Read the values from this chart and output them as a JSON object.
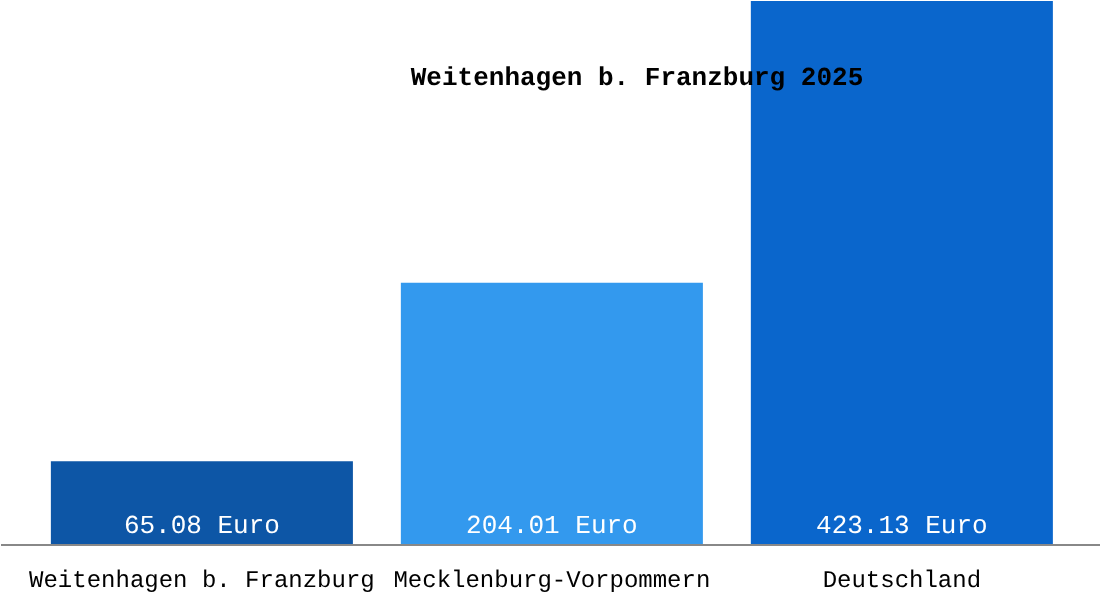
{
  "chart_data": {
    "type": "bar",
    "title": "Weitenhagen b. Franzburg 2025",
    "categories": [
      "Weitenhagen b. Franzburg",
      "Mecklenburg-Vorpommern",
      "Deutschland"
    ],
    "values": [
      65.08,
      204.01,
      423.13
    ],
    "colors": [
      "#0d56a6",
      "#3399ee",
      "#0a66cc"
    ],
    "value_labels": [
      "65.08 Euro",
      "204.01 Euro",
      "423.13 Euro"
    ],
    "grid": false
  }
}
